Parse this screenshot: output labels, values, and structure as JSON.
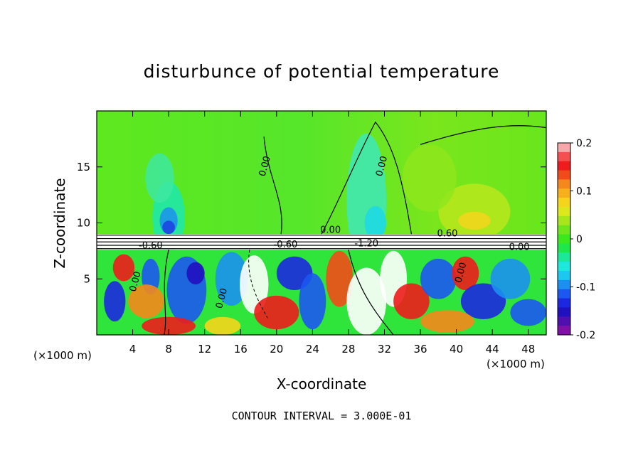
{
  "page": {
    "title": "disturbunce of potential temperature",
    "footer": "CONTOUR INTERVAL = 3.000E-01"
  },
  "chart_data": {
    "type": "heatmap",
    "title": "disturbunce of potential temperature",
    "xlabel": "X-coordinate",
    "ylabel": "Z-coordinate",
    "x_unit": "(×1000 m)",
    "xlim": [
      0,
      50
    ],
    "ylim": [
      0,
      20
    ],
    "x_ticks": [
      4,
      8,
      12,
      16,
      20,
      24,
      28,
      32,
      36,
      40,
      44,
      48
    ],
    "y_ticks": [
      5,
      10,
      15
    ],
    "colorbar": {
      "range": [
        -0.2,
        0.2
      ],
      "tick_labels": [
        "0.2",
        "0.1",
        "0",
        "-0.1",
        "-0.2"
      ],
      "tick_values": [
        0.2,
        0.1,
        0,
        -0.1,
        -0.2
      ],
      "colors": [
        "#f7a8a8",
        "#f55050",
        "#ee1c1c",
        "#f24b1a",
        "#f5881c",
        "#f5b01c",
        "#f5d51c",
        "#dce81c",
        "#a8e61c",
        "#6fe61c",
        "#3be81c",
        "#1ce84a",
        "#1ce89a",
        "#1ce8dc",
        "#1cc8f0",
        "#1c90f0",
        "#1c58f0",
        "#1c28e0",
        "#2010c0",
        "#5010b0",
        "#8010a8"
      ]
    },
    "contour_labels": [
      {
        "text": "0.00",
        "x": 19,
        "z": 15
      },
      {
        "text": "0.00",
        "x": 32,
        "z": 15
      },
      {
        "text": "0.00",
        "x": 26,
        "z": 9.1
      },
      {
        "text": "0.60",
        "x": 39,
        "z": 8.8
      },
      {
        "text": "-0.60",
        "x": 6,
        "z": 7.7
      },
      {
        "text": "-0.60",
        "x": 21,
        "z": 7.8
      },
      {
        "text": "-1.20",
        "x": 30,
        "z": 7.9
      },
      {
        "text": "0.00",
        "x": 47,
        "z": 7.6
      },
      {
        "text": "0.00",
        "x": 4.6,
        "z": 4.7
      },
      {
        "text": "0.00",
        "x": 14.2,
        "z": 3.2
      },
      {
        "text": "0.00",
        "x": 40.8,
        "z": 5.5
      }
    ],
    "contour_interval": 0.3,
    "grid": false,
    "legend": "right colorbar"
  }
}
